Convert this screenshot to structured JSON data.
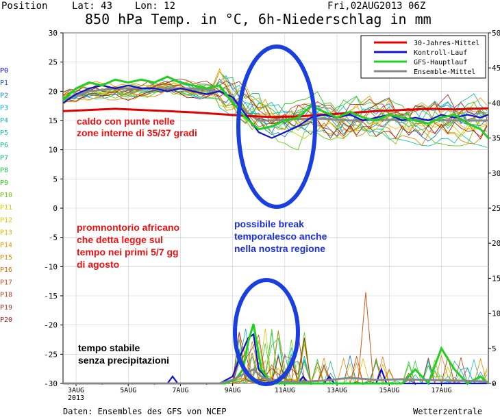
{
  "header": {
    "position": "Position",
    "lat": "Lat: 43",
    "lon": "Lon: 12",
    "date": "Fri,02AUG2013 06Z",
    "title": "850 hPa Temp. in °C, 6h-Niederschlag in mm"
  },
  "footer": {
    "source": "Daten: Ensembles des GFS von NCEP",
    "brand": "Wetterzentrale"
  },
  "members": [
    {
      "label": "P0",
      "color": "#0000ff"
    },
    {
      "label": "P1",
      "color": "#1a5fe0"
    },
    {
      "label": "P2",
      "color": "#1c86d8"
    },
    {
      "label": "P3",
      "color": "#14a6cc"
    },
    {
      "label": "P4",
      "color": "#10b8b0"
    },
    {
      "label": "P5",
      "color": "#12c4b8"
    },
    {
      "label": "P6",
      "color": "#10b888"
    },
    {
      "label": "P7",
      "color": "#10c070"
    },
    {
      "label": "P8",
      "color": "#18c848"
    },
    {
      "label": "P9",
      "color": "#30c820"
    },
    {
      "label": "P10",
      "color": "#60cc10"
    },
    {
      "label": "P11",
      "color": "#c8d000"
    },
    {
      "label": "P12",
      "color": "#e0c800"
    },
    {
      "label": "P13",
      "color": "#e8b400"
    },
    {
      "label": "P14",
      "color": "#e8a000"
    },
    {
      "label": "P15",
      "color": "#e08800"
    },
    {
      "label": "P16",
      "color": "#d87000"
    },
    {
      "label": "P17",
      "color": "#c85818"
    },
    {
      "label": "P18",
      "color": "#b84020"
    },
    {
      "label": "P19",
      "color": "#a83020"
    },
    {
      "label": "P20",
      "color": "#982018"
    }
  ],
  "annotations": {
    "caldo": [
      "caldo con punte nelle",
      "zone interne di 35/37 gradi"
    ],
    "promontorio": [
      "promnontorio africano",
      "che detta legge sul",
      "tempo nei primi 5/7 gg",
      "di agosto"
    ],
    "break": [
      "possibile break",
      "temporalesco anche",
      "nella nostra regione"
    ],
    "stabile": [
      "tempo stabile",
      "senza precipitazioni"
    ]
  },
  "colors": {
    "annotation_red": "#ee1010",
    "annotation_blue": "#1a30d8",
    "ellipse_blue": "#1a3fe0",
    "clim": "#e00000",
    "control": "#1010d0",
    "gfs": "#20d020",
    "mean": "#888888"
  },
  "chart_data": {
    "type": "line",
    "title": "850 hPa Temp. in °C, 6h-Niederschlag in mm",
    "x_unit": "day of forecast from 3 AUG 2013",
    "x_range": [
      0,
      16.3
    ],
    "x_ticks": [
      {
        "x": 0.5,
        "label": "3AUG",
        "sub": "2013"
      },
      {
        "x": 2.5,
        "label": "5AUG"
      },
      {
        "x": 4.5,
        "label": "7AUG"
      },
      {
        "x": 6.5,
        "label": "9AUG"
      },
      {
        "x": 8.5,
        "label": "11AUG"
      },
      {
        "x": 10.5,
        "label": "13AUG"
      },
      {
        "x": 12.5,
        "label": "15AUG"
      },
      {
        "x": 14.5,
        "label": "17AUG"
      }
    ],
    "y_left": {
      "label": "°C",
      "range": [
        -30,
        30
      ],
      "ticks": [
        30,
        25,
        20,
        15,
        10,
        5,
        0,
        -5,
        -10,
        -15,
        -20,
        -25,
        -30
      ]
    },
    "y_right": {
      "label": "mm",
      "range": [
        0,
        50
      ],
      "ticks": [
        50,
        45,
        40,
        35,
        30,
        25,
        20,
        15,
        10,
        5,
        0
      ]
    },
    "legend": {
      "position": "top-right",
      "entries": [
        {
          "name": "30-Jahres-Mittel",
          "color": "#e00000"
        },
        {
          "name": "Kontroll-Lauf",
          "color": "#1010d0"
        },
        {
          "name": "GFS-Hauptlauf",
          "color": "#20d020"
        },
        {
          "name": "Ensemble-Mittel",
          "color": "#888888"
        }
      ]
    },
    "temperature_series": [
      {
        "name": "30-Jahres-Mittel",
        "x": [
          0,
          1,
          2,
          3,
          4,
          5,
          6,
          7,
          8,
          9,
          10,
          11,
          12,
          13,
          14,
          15,
          16.3
        ],
        "y": [
          16.6,
          16.8,
          17.0,
          16.8,
          16.6,
          16.4,
          16.1,
          15.8,
          15.6,
          15.7,
          16.0,
          16.3,
          16.6,
          16.8,
          17.0,
          16.9,
          17.1
        ]
      },
      {
        "name": "Kontroll-Lauf",
        "x": [
          0,
          0.5,
          1,
          1.5,
          2,
          2.5,
          3,
          3.5,
          4,
          4.5,
          5,
          5.5,
          6,
          6.5,
          7,
          7.5,
          8,
          8.5,
          9,
          9.5,
          10,
          10.5,
          11,
          11.5,
          12,
          12.5,
          13,
          13.5,
          14,
          14.5,
          15,
          15.5,
          16,
          16.3
        ],
        "y": [
          18,
          19.5,
          20.5,
          21,
          20.5,
          21,
          20.5,
          20.5,
          20,
          20.5,
          20,
          19.5,
          20,
          19,
          16,
          13,
          12,
          13,
          14,
          15.5,
          16,
          15.5,
          16,
          15,
          15.5,
          16,
          15,
          15.5,
          15,
          16,
          15.5,
          16,
          15.5,
          16
        ]
      },
      {
        "name": "GFS-Hauptlauf",
        "x": [
          0,
          0.5,
          1,
          1.5,
          2,
          2.5,
          3,
          3.5,
          4,
          4.5,
          5,
          5.5,
          6,
          6.5,
          7,
          7.5,
          8,
          8.5,
          9,
          9.5,
          10,
          10.5,
          11,
          11.5,
          12,
          12.5,
          13,
          13.5,
          14,
          14.5,
          15,
          15.5,
          16,
          16.3
        ],
        "y": [
          18.5,
          20.5,
          21.5,
          21,
          22,
          21.5,
          22,
          21.5,
          22.5,
          21.5,
          21,
          20.5,
          21,
          18,
          15.5,
          13.5,
          14,
          15,
          15.5,
          17.5,
          16.5,
          15.5,
          16.5,
          15.5,
          15,
          16,
          15.5,
          15,
          14.5,
          15.5,
          16,
          14.5,
          13.5,
          12
        ]
      },
      {
        "name": "Ensemble-Mittel",
        "x": [
          0,
          1,
          2,
          3,
          4,
          5,
          6,
          6.5,
          7,
          7.5,
          8,
          9,
          10,
          11,
          12,
          13,
          14,
          15,
          16.3
        ],
        "y": [
          18.5,
          20,
          20.5,
          20.5,
          20.5,
          20.5,
          20,
          18.5,
          16.5,
          15,
          15,
          15.3,
          15.3,
          15,
          15.1,
          15.1,
          15.1,
          15,
          15
        ]
      }
    ],
    "precipitation_series": [
      {
        "name": "Kontroll-Lauf",
        "x": [
          0,
          4,
          4.2,
          4.4,
          6,
          6.5,
          6.8,
          7.1,
          7.3,
          7.5,
          8,
          9,
          9.2,
          9.4,
          10,
          10.2,
          10.4,
          12,
          12.2,
          12.4,
          16.3
        ],
        "y": [
          0,
          0,
          1,
          0,
          0,
          1,
          4,
          6.5,
          7,
          2,
          0,
          0,
          1,
          0,
          0,
          1,
          0,
          0,
          2,
          0,
          0
        ]
      },
      {
        "name": "GFS-Hauptlauf",
        "x": [
          0,
          6.2,
          6.6,
          6.9,
          7.1,
          7.3,
          7.6,
          8,
          13,
          13.5,
          14,
          14.5,
          15,
          15.5,
          16,
          16.3
        ],
        "y": [
          0,
          0,
          0.5,
          2,
          6,
          8.5,
          2,
          0,
          0,
          2,
          0,
          5,
          2,
          0,
          1,
          0
        ]
      },
      {
        "name": "Ensemble-Mittel",
        "x": [
          0,
          6,
          6.5,
          7,
          7.3,
          7.6,
          8,
          9,
          10,
          11,
          12,
          13,
          14,
          15,
          16,
          16.3
        ],
        "y": [
          0,
          0,
          0.5,
          1.5,
          2,
          1,
          0.3,
          0.2,
          0.4,
          0.8,
          0.5,
          0.6,
          0.5,
          0.4,
          0.3,
          0.2
        ]
      }
    ]
  }
}
